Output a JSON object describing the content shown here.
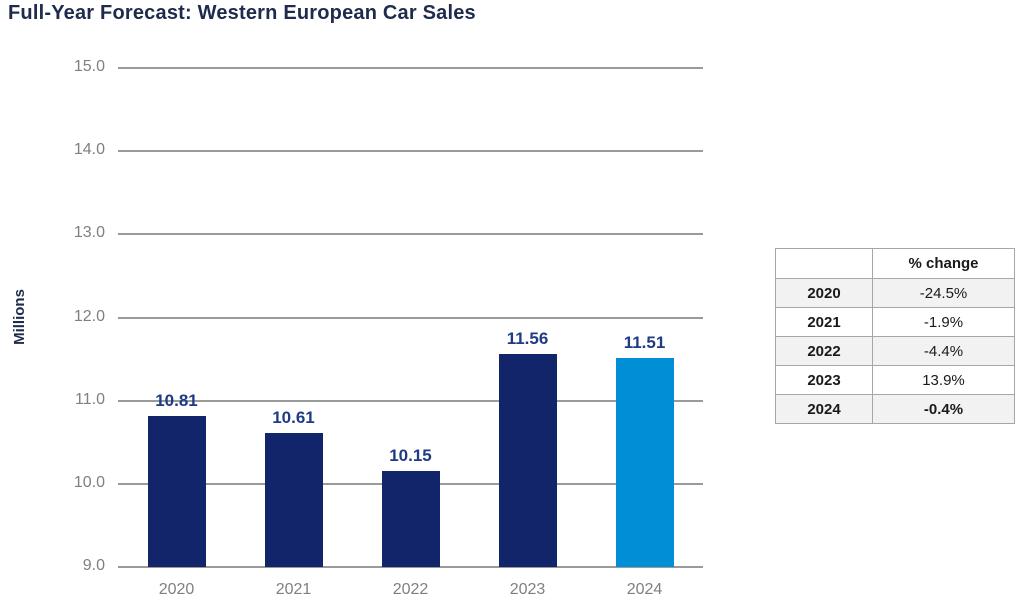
{
  "title": "Full-Year Forecast: Western European Car Sales",
  "chart_data": {
    "type": "bar",
    "title": "Full-Year Forecast: Western European Car Sales",
    "categories": [
      "2020",
      "2021",
      "2022",
      "2023",
      "2024"
    ],
    "values": [
      10.81,
      10.61,
      10.15,
      11.56,
      11.51
    ],
    "value_labels": [
      "10.81",
      "10.61",
      "10.15",
      "11.56",
      "11.51"
    ],
    "xlabel": "",
    "ylabel": "Millions",
    "ylim": [
      9.0,
      15.0
    ],
    "yticks": [
      "15.0",
      "14.0",
      "13.0",
      "12.0",
      "11.0",
      "10.0",
      "9.0"
    ],
    "grid": true,
    "legend": "none",
    "bar_colors": [
      "#12246A",
      "#12246A",
      "#12246A",
      "#12246A",
      "#008ED6"
    ],
    "highlight_index": 4
  },
  "side_table": {
    "header": [
      "",
      "% change"
    ],
    "rows": [
      {
        "year": "2020",
        "change": "-24.5%",
        "shaded": true,
        "bold_value": false
      },
      {
        "year": "2021",
        "change": "-1.9%",
        "shaded": false,
        "bold_value": false
      },
      {
        "year": "2022",
        "change": "-4.4%",
        "shaded": true,
        "bold_value": false
      },
      {
        "year": "2023",
        "change": "13.9%",
        "shaded": false,
        "bold_value": false
      },
      {
        "year": "2024",
        "change": "-0.4%",
        "shaded": true,
        "bold_value": true
      }
    ]
  },
  "colors": {
    "bar_navy": "#12246A",
    "bar_light_blue": "#008ED6",
    "title_navy": "#1F2B4D",
    "data_label_navy": "#1F3B86",
    "gridline_gray": "#9A9A9A",
    "axis_text_gray": "#7F7F7F",
    "table_border_gray": "#A6A6A6",
    "table_shade_gray": "#F2F2F2",
    "table_text": "#1A1A1A"
  }
}
